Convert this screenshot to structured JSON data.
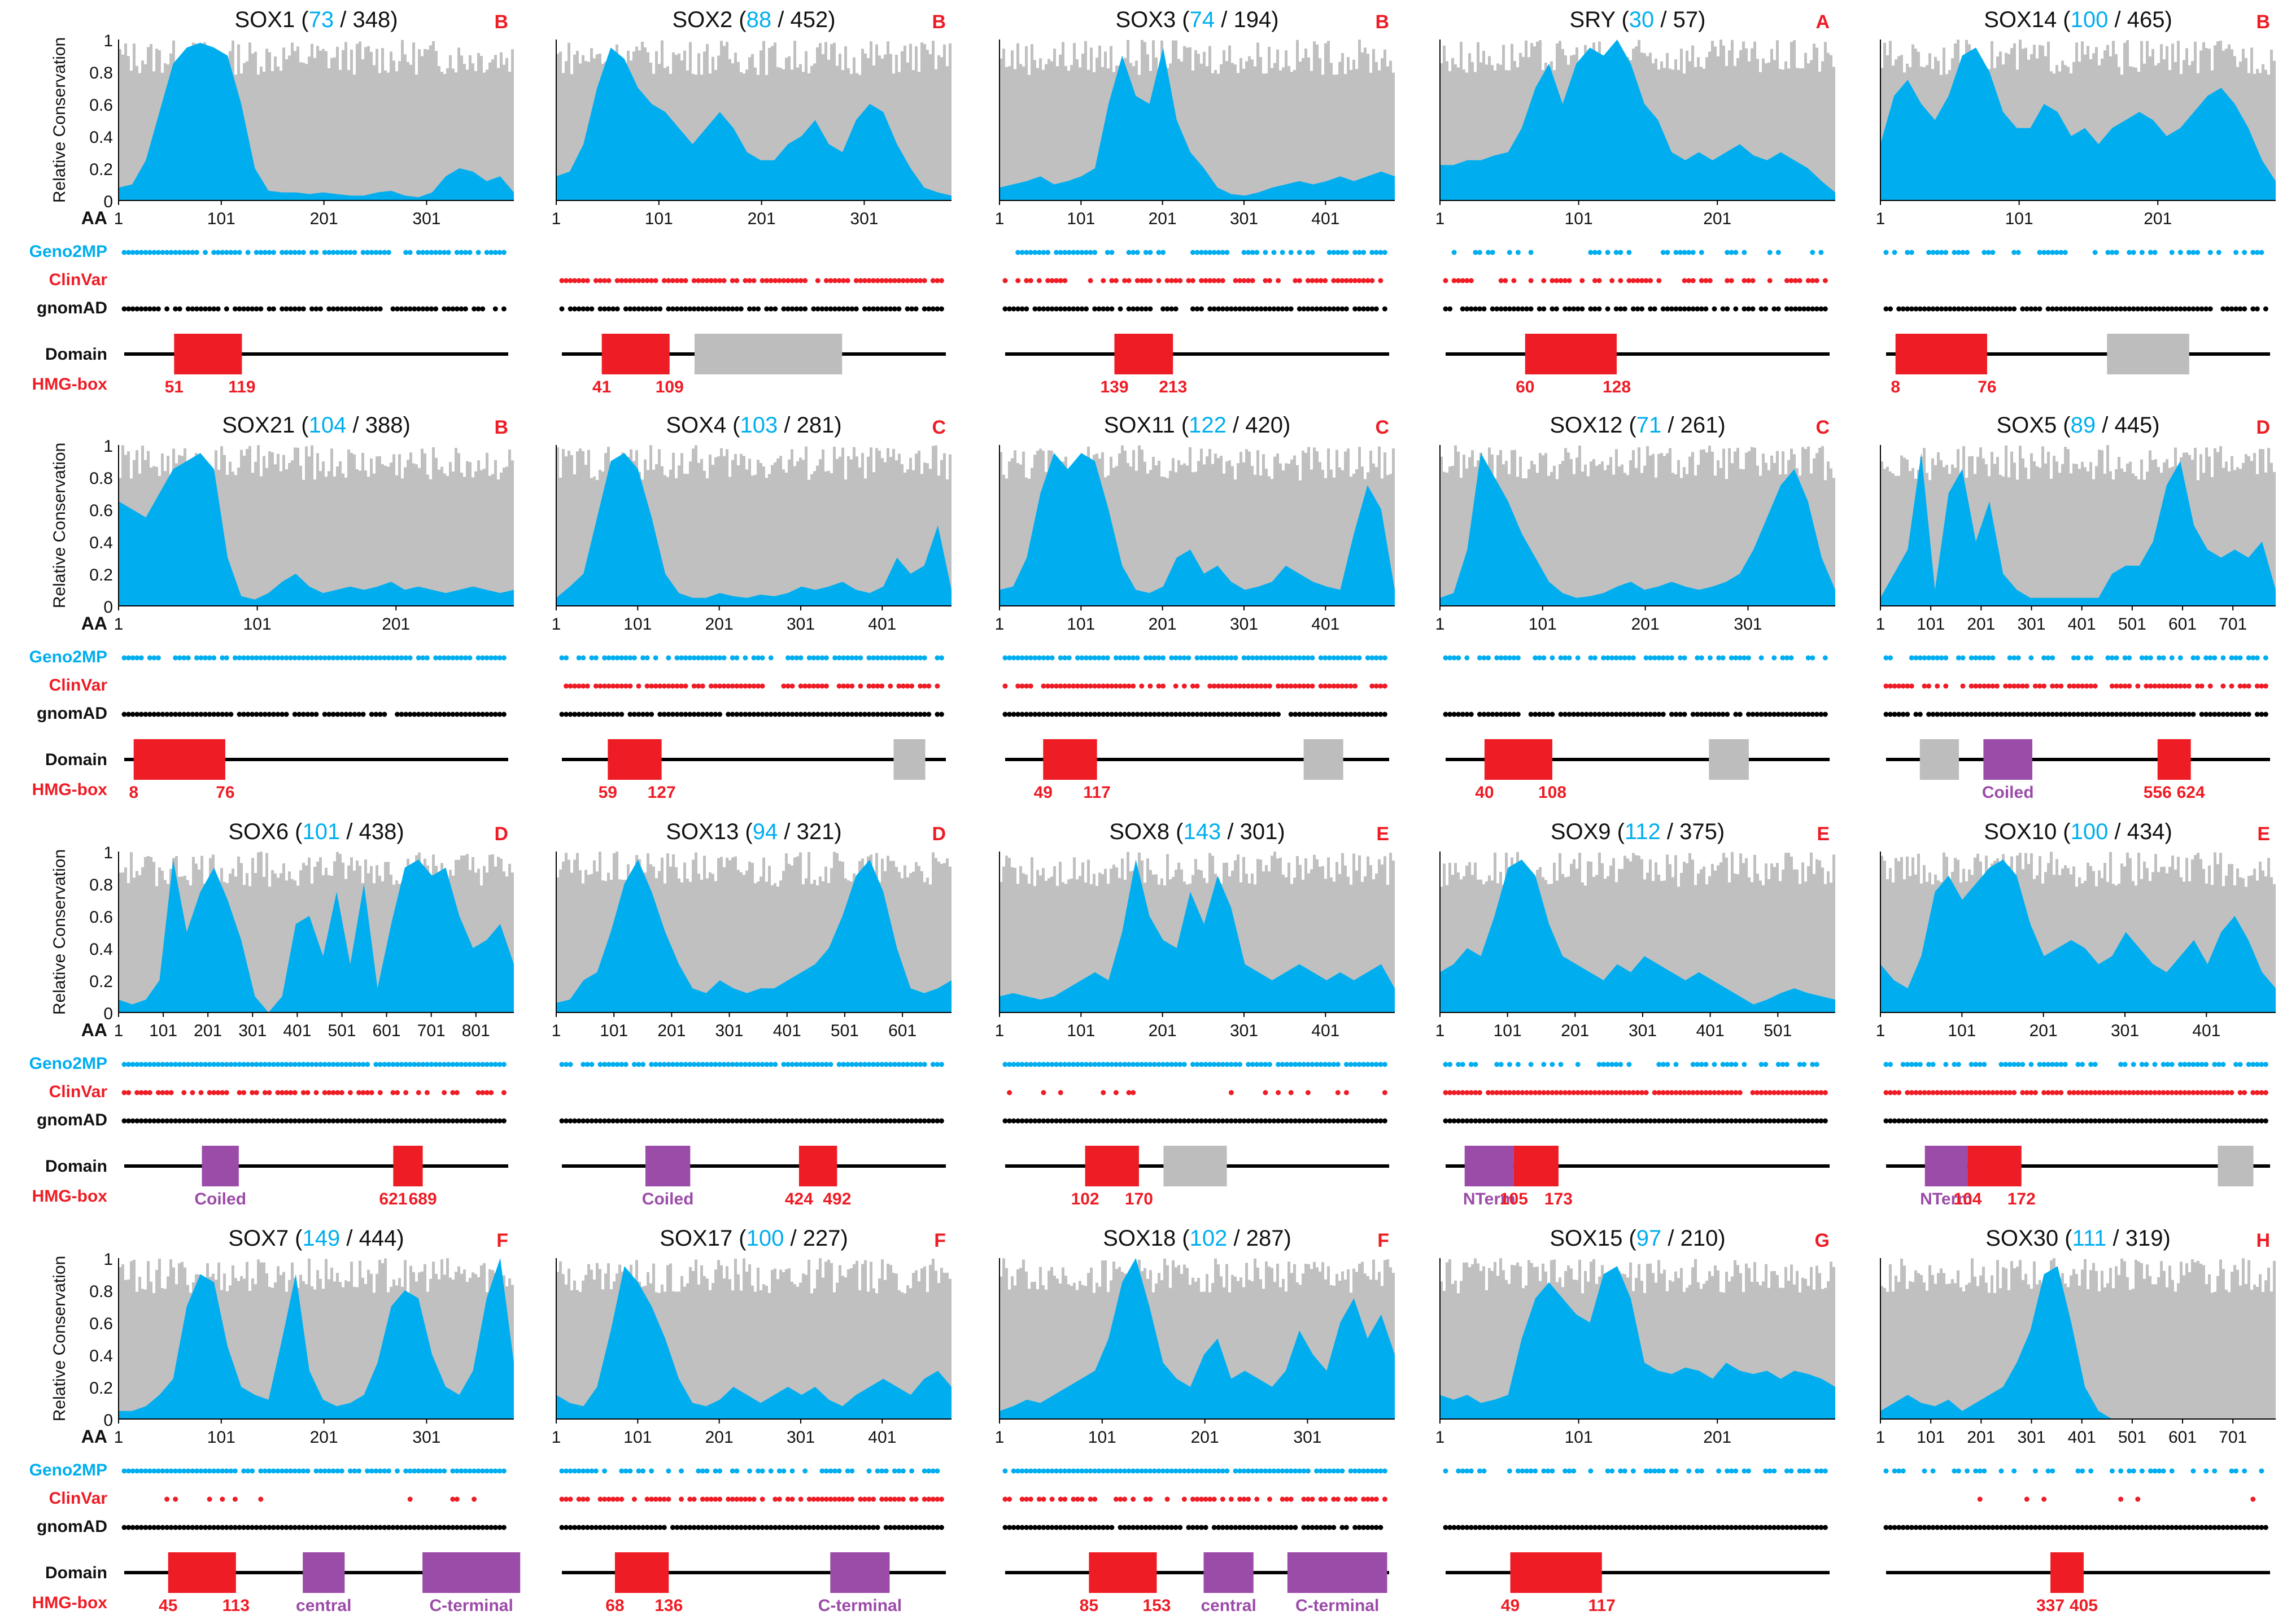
{
  "figure": {
    "ylabel": "Relative Conservation",
    "yticks": [
      "0",
      "0.2",
      "0.4",
      "0.6",
      "0.8",
      "1"
    ],
    "aa_label": "AA",
    "row_labels": {
      "geno2mp": "Geno2MP",
      "clinvar": "ClinVar",
      "gnomad": "gnomAD",
      "domain": "Domain",
      "hmg": "HMG-box"
    },
    "colors": {
      "cons": "#00AEEF",
      "bg": "#C0C0C0",
      "clinvar": "#EE1C25",
      "gnomad": "#000000",
      "hmg": "#EE1C25",
      "other": "#BDBDBD",
      "coiled": "#9B4BA8"
    }
  },
  "chart_data": [
    {
      "type": "area",
      "name": "SOX1",
      "n_species": "73",
      "length": "348",
      "group": "B",
      "ticks": [
        "1",
        "101",
        "201",
        "301"
      ],
      "hmg": [
        "51",
        "119"
      ],
      "domains": [],
      "cons": [
        0.08,
        0.1,
        0.25,
        0.55,
        0.85,
        0.95,
        0.98,
        0.95,
        0.9,
        0.6,
        0.2,
        0.06,
        0.05,
        0.05,
        0.04,
        0.05,
        0.04,
        0.03,
        0.03,
        0.05,
        0.06,
        0.03,
        0.02,
        0.05,
        0.15,
        0.2,
        0.18,
        0.12,
        0.15,
        0.05
      ],
      "geno2mp": 0.85,
      "clinvar": 0.0,
      "gnomad": 0.85
    },
    {
      "type": "area",
      "name": "SOX2",
      "n_species": "88",
      "length": "452",
      "group": "B",
      "ticks": [
        "1",
        "101",
        "201",
        "301"
      ],
      "hmg": [
        "41",
        "109"
      ],
      "domains": [
        {
          "label": "",
          "kind": "other",
          "start": "134",
          "end": "282"
        }
      ],
      "cons": [
        0.15,
        0.18,
        0.35,
        0.7,
        0.95,
        0.88,
        0.7,
        0.6,
        0.55,
        0.45,
        0.35,
        0.45,
        0.55,
        0.45,
        0.3,
        0.25,
        0.25,
        0.35,
        0.4,
        0.5,
        0.35,
        0.3,
        0.5,
        0.6,
        0.55,
        0.35,
        0.2,
        0.08,
        0.05,
        0.03
      ],
      "geno2mp": 0.0,
      "clinvar": 0.85,
      "gnomad": 0.9
    },
    {
      "type": "area",
      "name": "SOX3",
      "n_species": "74",
      "length": "194",
      "group": "B",
      "ticks": [
        "1",
        "101",
        "201",
        "301",
        "401"
      ],
      "hmg": [
        "139",
        "213"
      ],
      "domains": [],
      "cons": [
        0.08,
        0.1,
        0.12,
        0.15,
        0.1,
        0.12,
        0.15,
        0.2,
        0.6,
        0.9,
        0.65,
        0.6,
        0.95,
        0.5,
        0.3,
        0.2,
        0.08,
        0.04,
        0.03,
        0.05,
        0.08,
        0.1,
        0.12,
        0.1,
        0.12,
        0.15,
        0.12,
        0.15,
        0.18,
        0.15
      ],
      "geno2mp": 0.7,
      "clinvar": 0.6,
      "gnomad": 0.75
    },
    {
      "type": "area",
      "name": "SRY",
      "n_species": "30",
      "length": "57",
      "group": "A",
      "ticks": [
        "1",
        "101",
        "201"
      ],
      "hmg": [
        "60",
        "128"
      ],
      "domains": [],
      "cons": [
        0.22,
        0.22,
        0.25,
        0.25,
        0.28,
        0.3,
        0.45,
        0.7,
        0.85,
        0.6,
        0.85,
        0.95,
        0.9,
        1.0,
        0.85,
        0.6,
        0.5,
        0.3,
        0.25,
        0.3,
        0.25,
        0.3,
        0.35,
        0.28,
        0.25,
        0.3,
        0.25,
        0.2,
        0.12,
        0.05
      ],
      "geno2mp": 0.3,
      "clinvar": 0.6,
      "gnomad": 0.75
    },
    {
      "type": "area",
      "name": "SOX14",
      "n_species": "100",
      "length": "465",
      "group": "B",
      "ticks": [
        "1",
        "101",
        "201"
      ],
      "hmg": [
        "8",
        "76"
      ],
      "domains": [
        {
          "label": "",
          "kind": "other",
          "start": "165",
          "end": "226"
        }
      ],
      "cons": [
        0.35,
        0.65,
        0.75,
        0.6,
        0.5,
        0.65,
        0.9,
        0.95,
        0.8,
        0.55,
        0.45,
        0.45,
        0.6,
        0.55,
        0.4,
        0.45,
        0.35,
        0.45,
        0.5,
        0.55,
        0.5,
        0.4,
        0.45,
        0.55,
        0.65,
        0.7,
        0.6,
        0.45,
        0.25,
        0.12
      ],
      "geno2mp": 0.5,
      "clinvar": 0.0,
      "gnomad": 0.9
    },
    {
      "type": "area",
      "name": "SOX21",
      "n_species": "104",
      "length": "388",
      "group": "B",
      "ticks": [
        "1",
        "101",
        "201"
      ],
      "hmg": [
        "8",
        "76"
      ],
      "domains": [],
      "cons": [
        0.65,
        0.6,
        0.55,
        0.7,
        0.85,
        0.9,
        0.95,
        0.85,
        0.3,
        0.06,
        0.04,
        0.08,
        0.15,
        0.2,
        0.12,
        0.08,
        0.1,
        0.12,
        0.1,
        0.12,
        0.15,
        0.1,
        0.12,
        0.1,
        0.08,
        0.1,
        0.12,
        0.1,
        0.08,
        0.1
      ],
      "geno2mp": 0.85,
      "clinvar": 0.0,
      "gnomad": 0.95
    },
    {
      "type": "area",
      "name": "SOX4",
      "n_species": "103",
      "length": "281",
      "group": "C",
      "ticks": [
        "1",
        "101",
        "201",
        "301",
        "401"
      ],
      "hmg": [
        "59",
        "127"
      ],
      "domains": [
        {
          "label": "",
          "kind": "other",
          "start": "420",
          "end": "460"
        }
      ],
      "cons": [
        0.05,
        0.12,
        0.2,
        0.55,
        0.9,
        0.95,
        0.85,
        0.55,
        0.2,
        0.08,
        0.05,
        0.05,
        0.08,
        0.06,
        0.05,
        0.07,
        0.06,
        0.08,
        0.12,
        0.1,
        0.12,
        0.15,
        0.1,
        0.08,
        0.12,
        0.3,
        0.2,
        0.25,
        0.5,
        0.1
      ],
      "geno2mp": 0.8,
      "clinvar": 0.8,
      "gnomad": 0.95
    },
    {
      "type": "area",
      "name": "SOX11",
      "n_species": "122",
      "length": "420",
      "group": "C",
      "ticks": [
        "1",
        "101",
        "201",
        "301",
        "401"
      ],
      "hmg": [
        "49",
        "117"
      ],
      "domains": [
        {
          "label": "",
          "kind": "other",
          "start": "378",
          "end": "428"
        }
      ],
      "cons": [
        0.1,
        0.12,
        0.3,
        0.7,
        0.95,
        0.85,
        0.95,
        0.9,
        0.6,
        0.25,
        0.1,
        0.08,
        0.12,
        0.3,
        0.35,
        0.2,
        0.25,
        0.15,
        0.1,
        0.12,
        0.15,
        0.25,
        0.2,
        0.15,
        0.12,
        0.1,
        0.45,
        0.75,
        0.6,
        0.1
      ],
      "geno2mp": 0.9,
      "clinvar": 0.85,
      "gnomad": 0.95
    },
    {
      "type": "area",
      "name": "SOX12",
      "n_species": "71",
      "length": "261",
      "group": "C",
      "ticks": [
        "1",
        "101",
        "201",
        "301"
      ],
      "hmg": [
        "40",
        "108"
      ],
      "domains": [
        {
          "label": "",
          "kind": "other",
          "start": "265",
          "end": "305"
        }
      ],
      "cons": [
        0.05,
        0.08,
        0.35,
        0.95,
        0.8,
        0.65,
        0.45,
        0.3,
        0.15,
        0.08,
        0.05,
        0.06,
        0.08,
        0.12,
        0.15,
        0.1,
        0.12,
        0.15,
        0.12,
        0.1,
        0.12,
        0.15,
        0.2,
        0.35,
        0.55,
        0.75,
        0.85,
        0.65,
        0.3,
        0.1
      ],
      "geno2mp": 0.6,
      "clinvar": 0.0,
      "gnomad": 0.95
    },
    {
      "type": "area",
      "name": "SOX5",
      "n_species": "89",
      "length": "445",
      "group": "D",
      "ticks": [
        "1",
        "101",
        "201",
        "301",
        "401",
        "501",
        "601",
        "701"
      ],
      "hmg": [
        "556",
        "624"
      ],
      "domains": [
        {
          "label": "",
          "kind": "other",
          "start": "70",
          "end": "150"
        },
        {
          "label": "Coiled",
          "kind": "coiled",
          "start": "200",
          "end": "300"
        }
      ],
      "cons": [
        0.05,
        0.2,
        0.35,
        0.95,
        0.1,
        0.7,
        0.85,
        0.4,
        0.65,
        0.2,
        0.1,
        0.05,
        0.05,
        0.05,
        0.05,
        0.05,
        0.05,
        0.2,
        0.25,
        0.25,
        0.4,
        0.75,
        0.9,
        0.5,
        0.35,
        0.3,
        0.35,
        0.3,
        0.4,
        0.1
      ],
      "geno2mp": 0.6,
      "clinvar": 0.7,
      "gnomad": 0.95
    },
    {
      "type": "area",
      "name": "SOX6",
      "n_species": "101",
      "length": "438",
      "group": "D",
      "ticks": [
        "1",
        "101",
        "201",
        "301",
        "401",
        "501",
        "601",
        "701",
        "801"
      ],
      "hmg": [
        "621",
        "689"
      ],
      "domains": [
        {
          "label": "Coiled",
          "kind": "coiled",
          "start": "180",
          "end": "265"
        }
      ],
      "cons": [
        0.08,
        0.05,
        0.08,
        0.2,
        0.95,
        0.5,
        0.75,
        0.9,
        0.7,
        0.45,
        0.1,
        0.0,
        0.1,
        0.55,
        0.6,
        0.35,
        0.75,
        0.3,
        0.8,
        0.15,
        0.55,
        0.9,
        0.95,
        0.85,
        0.9,
        0.6,
        0.4,
        0.45,
        0.55,
        0.3
      ],
      "geno2mp": 0.95,
      "clinvar": 0.7,
      "gnomad": 1.0
    },
    {
      "type": "area",
      "name": "SOX13",
      "n_species": "94",
      "length": "321",
      "group": "D",
      "ticks": [
        "1",
        "101",
        "201",
        "301",
        "401",
        "501",
        "601"
      ],
      "hmg": [
        "424",
        "492"
      ],
      "domains": [
        {
          "label": "Coiled",
          "kind": "coiled",
          "start": "150",
          "end": "230"
        }
      ],
      "cons": [
        0.06,
        0.08,
        0.2,
        0.25,
        0.5,
        0.8,
        0.95,
        0.75,
        0.5,
        0.3,
        0.15,
        0.12,
        0.2,
        0.15,
        0.12,
        0.15,
        0.15,
        0.2,
        0.25,
        0.3,
        0.4,
        0.6,
        0.85,
        0.95,
        0.75,
        0.4,
        0.15,
        0.12,
        0.15,
        0.2
      ],
      "geno2mp": 0.95,
      "clinvar": 0.0,
      "gnomad": 1.0
    },
    {
      "type": "area",
      "name": "SOX8",
      "n_species": "143",
      "length": "301",
      "group": "E",
      "ticks": [
        "1",
        "101",
        "201",
        "301",
        "401"
      ],
      "hmg": [
        "102",
        "170"
      ],
      "domains": [
        {
          "label": "",
          "kind": "other",
          "start": "201",
          "end": "281"
        }
      ],
      "cons": [
        0.1,
        0.12,
        0.1,
        0.08,
        0.1,
        0.15,
        0.2,
        0.25,
        0.2,
        0.5,
        0.95,
        0.6,
        0.45,
        0.4,
        0.75,
        0.55,
        0.85,
        0.65,
        0.3,
        0.25,
        0.2,
        0.25,
        0.3,
        0.25,
        0.2,
        0.25,
        0.2,
        0.25,
        0.3,
        0.15
      ],
      "geno2mp": 0.95,
      "clinvar": 0.15,
      "gnomad": 1.0
    },
    {
      "type": "area",
      "name": "SOX9",
      "n_species": "112",
      "length": "375",
      "group": "E",
      "ticks": [
        "1",
        "101",
        "201",
        "301",
        "401",
        "501"
      ],
      "hmg": [
        "105",
        "173"
      ],
      "domains": [
        {
          "label": "NTerm",
          "kind": "coiled",
          "start": "30",
          "end": "105"
        }
      ],
      "cons": [
        0.25,
        0.3,
        0.4,
        0.35,
        0.6,
        0.9,
        0.95,
        0.85,
        0.55,
        0.35,
        0.3,
        0.25,
        0.2,
        0.3,
        0.25,
        0.35,
        0.3,
        0.25,
        0.2,
        0.25,
        0.2,
        0.15,
        0.1,
        0.05,
        0.08,
        0.12,
        0.15,
        0.12,
        0.1,
        0.08
      ],
      "geno2mp": 0.5,
      "clinvar": 0.95,
      "gnomad": 1.0
    },
    {
      "type": "area",
      "name": "SOX10",
      "n_species": "100",
      "length": "434",
      "group": "E",
      "ticks": [
        "1",
        "101",
        "201",
        "301",
        "401"
      ],
      "hmg": [
        "104",
        "172"
      ],
      "domains": [
        {
          "label": "NTerm",
          "kind": "coiled",
          "start": "50",
          "end": "104"
        },
        {
          "label": "",
          "kind": "other",
          "start": "420",
          "end": "465"
        }
      ],
      "cons": [
        0.3,
        0.2,
        0.15,
        0.35,
        0.75,
        0.85,
        0.7,
        0.8,
        0.9,
        0.95,
        0.85,
        0.55,
        0.35,
        0.4,
        0.45,
        0.4,
        0.3,
        0.35,
        0.5,
        0.4,
        0.3,
        0.25,
        0.35,
        0.45,
        0.3,
        0.5,
        0.6,
        0.45,
        0.25,
        0.15
      ],
      "geno2mp": 0.7,
      "clinvar": 0.95,
      "gnomad": 1.0
    },
    {
      "type": "area",
      "name": "SOX7",
      "n_species": "149",
      "length": "444",
      "group": "F",
      "ticks": [
        "1",
        "101",
        "201",
        "301"
      ],
      "hmg": [
        "45",
        "113"
      ],
      "domains": [
        {
          "label": "central",
          "kind": "coiled",
          "start": "180",
          "end": "222"
        },
        {
          "label": "C-terminal",
          "kind": "coiled",
          "start": "300",
          "end": "398"
        }
      ],
      "cons": [
        0.05,
        0.05,
        0.08,
        0.15,
        0.25,
        0.7,
        0.9,
        0.85,
        0.45,
        0.2,
        0.15,
        0.12,
        0.5,
        0.9,
        0.3,
        0.12,
        0.08,
        0.1,
        0.15,
        0.35,
        0.7,
        0.8,
        0.75,
        0.4,
        0.2,
        0.15,
        0.3,
        0.75,
        1.0,
        0.35
      ],
      "geno2mp": 0.9,
      "clinvar": 0.1,
      "gnomad": 1.0
    },
    {
      "type": "area",
      "name": "SOX17",
      "n_species": "100",
      "length": "227",
      "group": "F",
      "ticks": [
        "1",
        "101",
        "201",
        "301",
        "401"
      ],
      "hmg": [
        "68",
        "136"
      ],
      "domains": [
        {
          "label": "C-terminal",
          "kind": "coiled",
          "start": "340",
          "end": "415"
        }
      ],
      "cons": [
        0.15,
        0.1,
        0.08,
        0.2,
        0.55,
        0.95,
        0.85,
        0.7,
        0.5,
        0.25,
        0.1,
        0.08,
        0.12,
        0.2,
        0.15,
        0.1,
        0.15,
        0.2,
        0.15,
        0.2,
        0.12,
        0.08,
        0.15,
        0.2,
        0.25,
        0.2,
        0.15,
        0.25,
        0.3,
        0.2
      ],
      "geno2mp": 0.6,
      "clinvar": 0.7,
      "gnomad": 0.95
    },
    {
      "type": "area",
      "name": "SOX18",
      "n_species": "102",
      "length": "287",
      "group": "F",
      "ticks": [
        "1",
        "101",
        "201",
        "301"
      ],
      "hmg": [
        "85",
        "153"
      ],
      "domains": [
        {
          "label": "central",
          "kind": "coiled",
          "start": "200",
          "end": "250"
        },
        {
          "label": "C-terminal",
          "kind": "coiled",
          "start": "284",
          "end": "384"
        }
      ],
      "cons": [
        0.05,
        0.08,
        0.12,
        0.1,
        0.15,
        0.2,
        0.25,
        0.3,
        0.5,
        0.85,
        1.0,
        0.7,
        0.35,
        0.25,
        0.2,
        0.4,
        0.5,
        0.25,
        0.3,
        0.25,
        0.2,
        0.3,
        0.55,
        0.4,
        0.3,
        0.6,
        0.75,
        0.5,
        0.65,
        0.4
      ],
      "geno2mp": 0.95,
      "clinvar": 0.6,
      "gnomad": 0.95
    },
    {
      "type": "area",
      "name": "SOX15",
      "n_species": "97",
      "length": "210",
      "group": "G",
      "ticks": [
        "1",
        "101",
        "201"
      ],
      "hmg": [
        "49",
        "117"
      ],
      "domains": [],
      "cons": [
        0.15,
        0.12,
        0.15,
        0.1,
        0.12,
        0.15,
        0.5,
        0.75,
        0.85,
        0.75,
        0.65,
        0.6,
        0.9,
        0.95,
        0.75,
        0.35,
        0.3,
        0.28,
        0.32,
        0.3,
        0.25,
        0.35,
        0.3,
        0.28,
        0.3,
        0.25,
        0.3,
        0.28,
        0.25,
        0.2
      ],
      "geno2mp": 0.5,
      "clinvar": 0.0,
      "gnomad": 1.0
    },
    {
      "type": "area",
      "name": "SOX30",
      "n_species": "111",
      "length": "319",
      "group": "H",
      "ticks": [
        "1",
        "101",
        "201",
        "301",
        "401",
        "501",
        "601",
        "701"
      ],
      "hmg": [
        "337",
        "405"
      ],
      "domains": [],
      "cons": [
        0.05,
        0.1,
        0.15,
        0.1,
        0.08,
        0.12,
        0.05,
        0.1,
        0.15,
        0.2,
        0.35,
        0.55,
        0.9,
        0.95,
        0.6,
        0.2,
        0.05,
        0.0,
        0.0,
        0.0,
        0.0,
        0.0,
        0.0,
        0.0,
        0.0,
        0.0,
        0.0,
        0.0,
        0.0,
        0.0
      ],
      "geno2mp": 0.42,
      "clinvar": 0.06,
      "gnomad": 1.0
    }
  ]
}
